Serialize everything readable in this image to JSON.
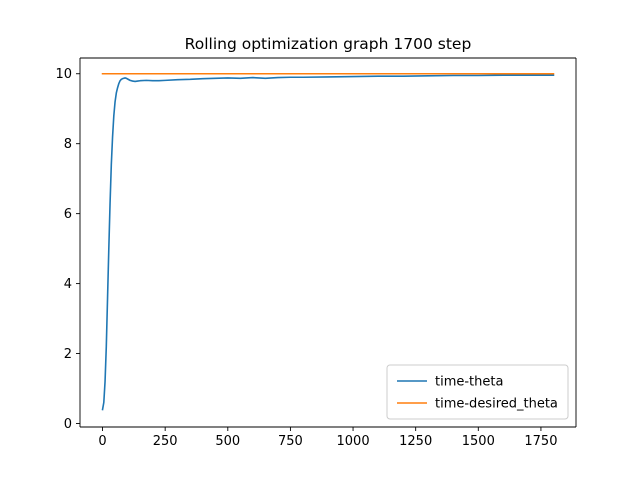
{
  "chart_data": {
    "type": "line",
    "title": "Rolling optimization graph 1700 step",
    "xlabel": "",
    "ylabel": "",
    "xlim": [
      -90,
      1890
    ],
    "ylim": [
      -0.1,
      10.45
    ],
    "x_ticks": [
      0,
      250,
      500,
      750,
      1000,
      1250,
      1500,
      1750
    ],
    "y_ticks": [
      0,
      2,
      4,
      6,
      8,
      10
    ],
    "grid": false,
    "legend_position": "lower right",
    "series": [
      {
        "name": "time-theta",
        "color": "#1f77b4",
        "x": [
          0,
          5,
          10,
          15,
          20,
          25,
          30,
          35,
          40,
          45,
          50,
          55,
          60,
          65,
          70,
          75,
          80,
          85,
          90,
          95,
          100,
          110,
          120,
          130,
          140,
          150,
          175,
          200,
          225,
          250,
          300,
          350,
          400,
          450,
          500,
          550,
          600,
          650,
          700,
          750,
          800,
          900,
          1000,
          1100,
          1200,
          1300,
          1400,
          1500,
          1600,
          1700,
          1800
        ],
        "y": [
          0.4,
          0.6,
          1.2,
          2.2,
          3.6,
          5.0,
          6.3,
          7.4,
          8.2,
          8.8,
          9.2,
          9.45,
          9.6,
          9.72,
          9.8,
          9.84,
          9.86,
          9.87,
          9.88,
          9.87,
          9.85,
          9.81,
          9.79,
          9.78,
          9.79,
          9.8,
          9.81,
          9.8,
          9.8,
          9.81,
          9.83,
          9.84,
          9.86,
          9.87,
          9.88,
          9.87,
          9.89,
          9.87,
          9.89,
          9.9,
          9.9,
          9.91,
          9.92,
          9.93,
          9.93,
          9.94,
          9.95,
          9.95,
          9.96,
          9.96,
          9.96
        ]
      },
      {
        "name": "time-desired_theta",
        "color": "#ff7f0e",
        "x": [
          0,
          1800
        ],
        "y": [
          10,
          10
        ]
      }
    ]
  }
}
